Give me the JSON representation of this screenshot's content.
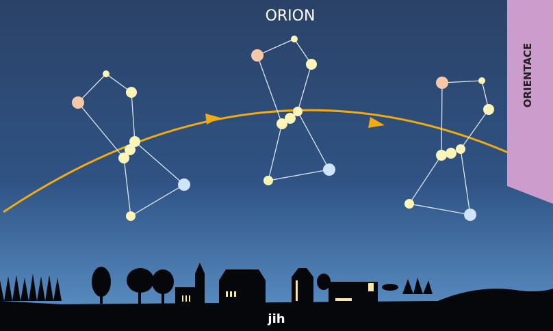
{
  "title": "ORION",
  "tab": {
    "label": "ORIENTACE"
  },
  "direction": "jih"
}
